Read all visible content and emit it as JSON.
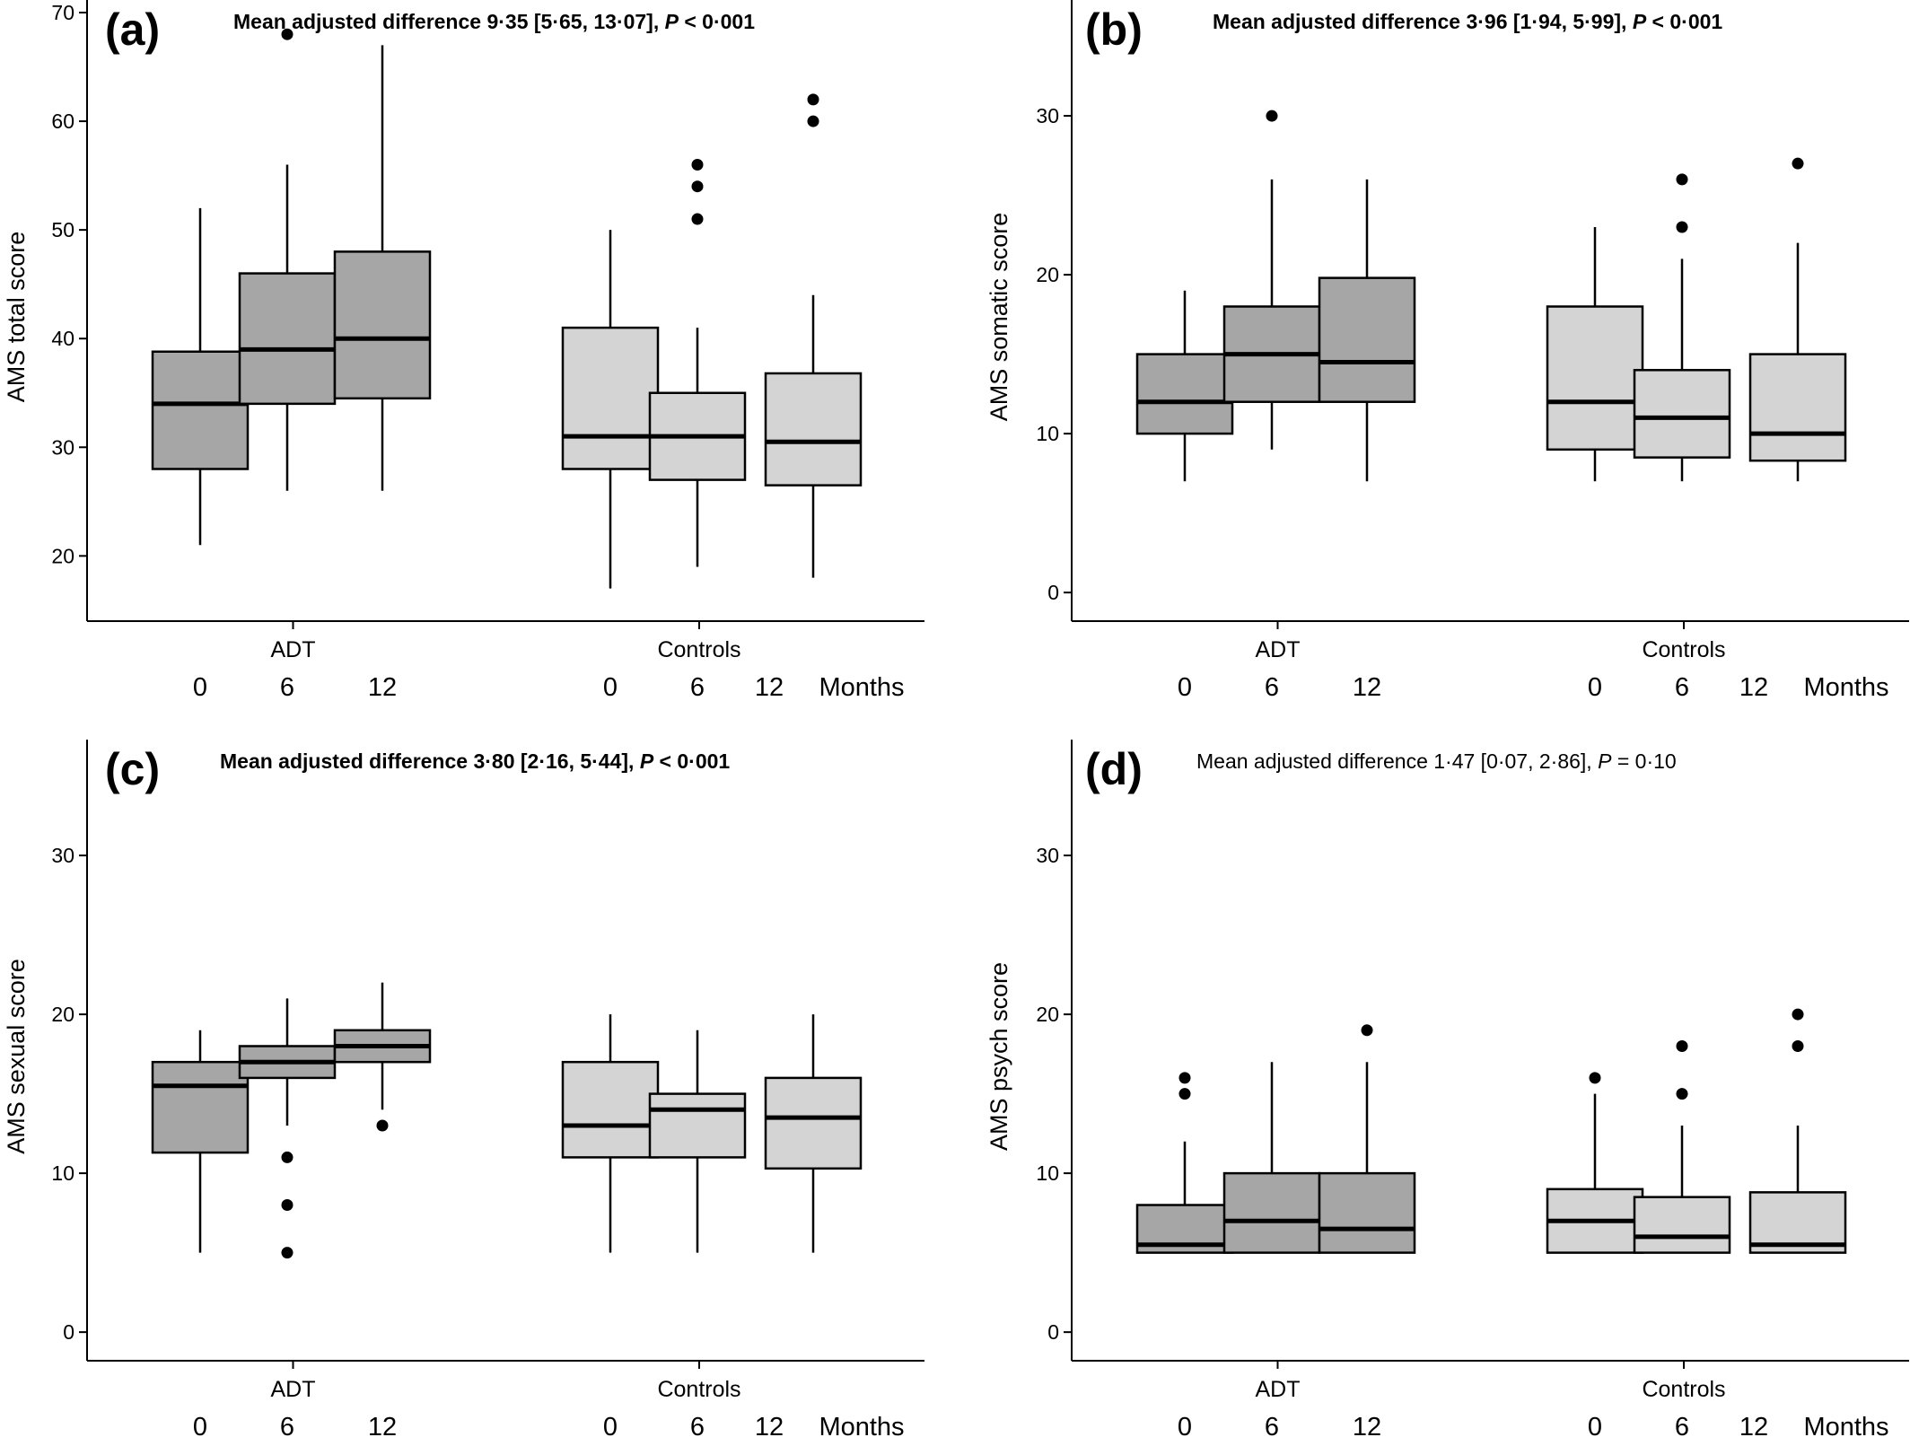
{
  "colors": {
    "adt_box": "#a6a6a6",
    "control_box": "#d4d4d4",
    "line": "#000000",
    "outlier": "#000000",
    "background": "#ffffff"
  },
  "chart_data": [
    {
      "type": "box",
      "panel": "(a)",
      "title": {
        "prefix": "Mean adjusted difference 9·35 [5·65, 13·07], ",
        "p": "P",
        "suffix": " < 0·001",
        "bold": true
      },
      "ylabel": "AMS total score",
      "ylim": [
        14,
        70
      ],
      "yticks": [
        20,
        30,
        40,
        50,
        60,
        70
      ],
      "groups": [
        "ADT",
        "Controls"
      ],
      "months": [
        "0",
        "6",
        "12"
      ],
      "months_label": "Months",
      "boxes": [
        {
          "group": "ADT",
          "month": "0",
          "min": 21,
          "q1": 28,
          "median": 34,
          "q3": 38.8,
          "max": 52,
          "outliers": []
        },
        {
          "group": "ADT",
          "month": "6",
          "min": 26,
          "q1": 34,
          "median": 39,
          "q3": 46,
          "max": 56,
          "outliers": [
            68
          ]
        },
        {
          "group": "ADT",
          "month": "12",
          "min": 26,
          "q1": 34.5,
          "median": 40,
          "q3": 48,
          "max": 67,
          "outliers": []
        },
        {
          "group": "Controls",
          "month": "0",
          "min": 17,
          "q1": 28,
          "median": 31,
          "q3": 41,
          "max": 50,
          "outliers": []
        },
        {
          "group": "Controls",
          "month": "6",
          "min": 19,
          "q1": 27,
          "median": 31,
          "q3": 35,
          "max": 41,
          "outliers": [
            51,
            54,
            56
          ]
        },
        {
          "group": "Controls",
          "month": "12",
          "min": 18,
          "q1": 26.5,
          "median": 30.5,
          "q3": 36.8,
          "max": 44,
          "outliers": [
            60,
            62
          ]
        }
      ]
    },
    {
      "type": "box",
      "panel": "(b)",
      "title": {
        "prefix": "Mean adjusted difference 3·96 [1·94, 5·99], ",
        "p": "P",
        "suffix": " < 0·001",
        "bold": true
      },
      "ylabel": "AMS somatic score",
      "ylim": [
        -1.8,
        36.5
      ],
      "yticks": [
        0,
        10,
        20,
        30
      ],
      "groups": [
        "ADT",
        "Controls"
      ],
      "months": [
        "0",
        "6",
        "12"
      ],
      "months_label": "Months",
      "boxes": [
        {
          "group": "ADT",
          "month": "0",
          "min": 7,
          "q1": 10,
          "median": 12,
          "q3": 15,
          "max": 19,
          "outliers": []
        },
        {
          "group": "ADT",
          "month": "6",
          "min": 9,
          "q1": 12,
          "median": 15,
          "q3": 18,
          "max": 26,
          "outliers": [
            30
          ]
        },
        {
          "group": "ADT",
          "month": "12",
          "min": 7,
          "q1": 12,
          "median": 14.5,
          "q3": 19.8,
          "max": 26,
          "outliers": []
        },
        {
          "group": "Controls",
          "month": "0",
          "min": 7,
          "q1": 9,
          "median": 12,
          "q3": 18,
          "max": 23,
          "outliers": []
        },
        {
          "group": "Controls",
          "month": "6",
          "min": 7,
          "q1": 8.5,
          "median": 11,
          "q3": 14,
          "max": 21,
          "outliers": [
            23,
            26
          ]
        },
        {
          "group": "Controls",
          "month": "12",
          "min": 7,
          "q1": 8.3,
          "median": 10,
          "q3": 15,
          "max": 22,
          "outliers": [
            27
          ]
        }
      ]
    },
    {
      "type": "box",
      "panel": "(c)",
      "title": {
        "prefix": "Mean adjusted difference 3·80 [2·16, 5·44], ",
        "p": "P",
        "suffix": " < 0·001",
        "bold": true
      },
      "ylabel": "AMS sexual score",
      "ylim": [
        -1.8,
        36.5
      ],
      "yticks": [
        0,
        10,
        20,
        30
      ],
      "groups": [
        "ADT",
        "Controls"
      ],
      "months": [
        "0",
        "6",
        "12"
      ],
      "months_label": "Months",
      "boxes": [
        {
          "group": "ADT",
          "month": "0",
          "min": 5,
          "q1": 11.3,
          "median": 15.5,
          "q3": 17,
          "max": 19,
          "outliers": []
        },
        {
          "group": "ADT",
          "month": "6",
          "min": 13,
          "q1": 16,
          "median": 17,
          "q3": 18,
          "max": 21,
          "outliers": [
            5,
            8,
            11
          ]
        },
        {
          "group": "ADT",
          "month": "12",
          "min": 14,
          "q1": 17,
          "median": 18,
          "q3": 19,
          "max": 22,
          "outliers": [
            13
          ]
        },
        {
          "group": "Controls",
          "month": "0",
          "min": 5,
          "q1": 11,
          "median": 13,
          "q3": 17,
          "max": 20,
          "outliers": []
        },
        {
          "group": "Controls",
          "month": "6",
          "min": 5,
          "q1": 11,
          "median": 14,
          "q3": 15,
          "max": 19,
          "outliers": []
        },
        {
          "group": "Controls",
          "month": "12",
          "min": 5,
          "q1": 10.3,
          "median": 13.5,
          "q3": 16,
          "max": 20,
          "outliers": []
        }
      ]
    },
    {
      "type": "box",
      "panel": "(d)",
      "title": {
        "prefix": "Mean adjusted difference 1·47 [0·07, 2·86], ",
        "p": "P",
        "suffix": " = 0·10",
        "bold": false
      },
      "ylabel": "AMS psych score",
      "ylim": [
        -1.8,
        36.5
      ],
      "yticks": [
        0,
        10,
        20,
        30
      ],
      "groups": [
        "ADT",
        "Controls"
      ],
      "months": [
        "0",
        "6",
        "12"
      ],
      "months_label": "Months",
      "boxes": [
        {
          "group": "ADT",
          "month": "0",
          "min": 5,
          "q1": 5,
          "median": 5.5,
          "q3": 8,
          "max": 12,
          "outliers": [
            15,
            16
          ]
        },
        {
          "group": "ADT",
          "month": "6",
          "min": 5,
          "q1": 5,
          "median": 7,
          "q3": 10,
          "max": 17,
          "outliers": []
        },
        {
          "group": "ADT",
          "month": "12",
          "min": 5,
          "q1": 5,
          "median": 6.5,
          "q3": 10,
          "max": 17,
          "outliers": [
            19
          ]
        },
        {
          "group": "Controls",
          "month": "0",
          "min": 5,
          "q1": 5,
          "median": 7,
          "q3": 9,
          "max": 15,
          "outliers": [
            16
          ]
        },
        {
          "group": "Controls",
          "month": "6",
          "min": 5,
          "q1": 5,
          "median": 6,
          "q3": 8.5,
          "max": 13,
          "outliers": [
            15,
            18
          ]
        },
        {
          "group": "Controls",
          "month": "12",
          "min": 5,
          "q1": 5,
          "median": 5.5,
          "q3": 8.8,
          "max": 13,
          "outliers": [
            18,
            20
          ]
        }
      ]
    }
  ]
}
